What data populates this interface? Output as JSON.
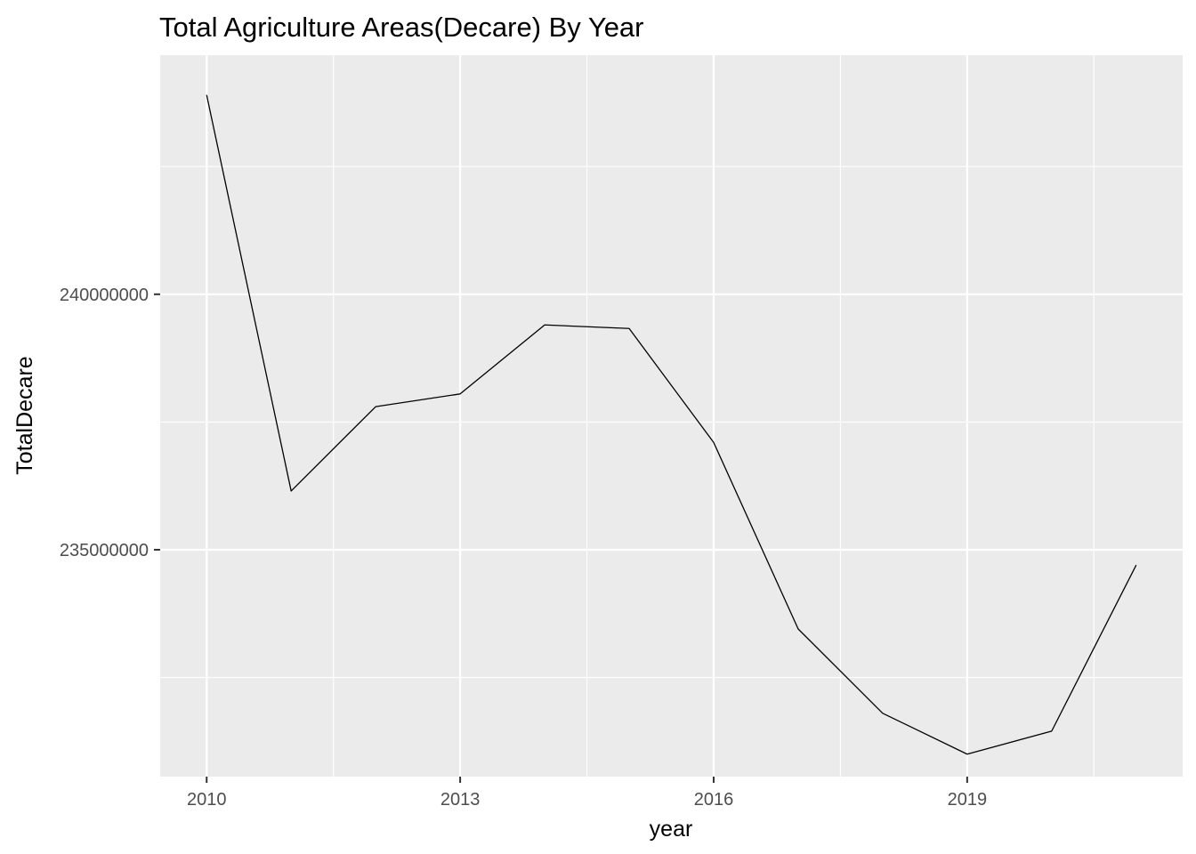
{
  "chart_data": {
    "type": "line",
    "title": "Total Agriculture Areas(Decare) By Year",
    "xlabel": "year",
    "ylabel": "TotalDecare",
    "x": [
      2010,
      2011,
      2012,
      2013,
      2014,
      2015,
      2016,
      2017,
      2018,
      2019,
      2020,
      2021
    ],
    "series": [
      {
        "values": [
          243900000,
          236150000,
          237800000,
          238050000,
          239400000,
          239330000,
          237100000,
          233450000,
          231800000,
          231000000,
          231450000,
          234700000
        ]
      }
    ],
    "xlim": [
      2009.45,
      2021.55
    ],
    "ylim": [
      230560000,
      244680000
    ],
    "x_ticks": [
      2010,
      2013,
      2016,
      2019
    ],
    "x_tick_labels": [
      "2010",
      "2013",
      "2016",
      "2019"
    ],
    "x_minor_ticks": [
      2011.5,
      2014.5,
      2017.5,
      2020.5
    ],
    "y_ticks": [
      235000000,
      240000000
    ],
    "y_tick_labels": [
      "235000000",
      "240000000"
    ],
    "y_minor_ticks": [
      232500000,
      237500000,
      242500000
    ],
    "grid": true,
    "legend": "none",
    "colors": {
      "panel_background": "#ebebeb",
      "grid_line": "#ffffff",
      "series_line": "#000000",
      "tick_mark": "#333333",
      "tick_label": "#4d4d4d",
      "text": "#000000"
    }
  }
}
